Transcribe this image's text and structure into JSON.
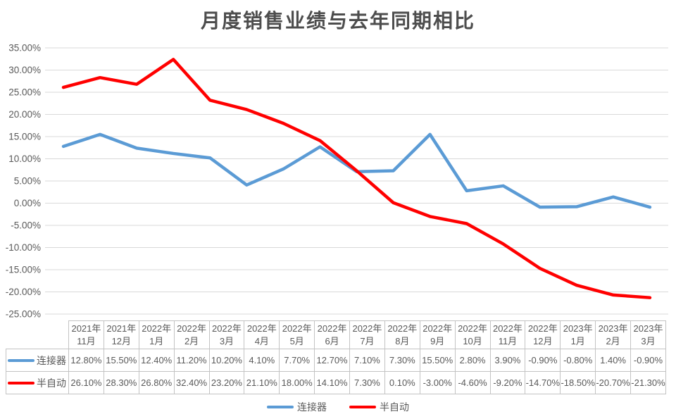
{
  "title": "月度销售业绩与去年同期相比",
  "chart_data": {
    "type": "line",
    "title": "月度销售业绩与去年同期相比",
    "categories": [
      "2021年11月",
      "2021年12月",
      "2022年1月",
      "2022年2月",
      "2022年3月",
      "2022年4月",
      "2022年5月",
      "2022年6月",
      "2022年7月",
      "2022年8月",
      "2022年9月",
      "2022年10月",
      "2022年11月",
      "2022年12月",
      "2023年1月",
      "2023年2月",
      "2023年3月"
    ],
    "series": [
      {
        "name": "连接器",
        "color": "#5B9BD5",
        "values": [
          12.8,
          15.5,
          12.4,
          11.2,
          10.2,
          4.1,
          7.7,
          12.7,
          7.1,
          7.3,
          15.5,
          2.8,
          3.9,
          -0.9,
          -0.8,
          1.4,
          -0.9
        ]
      },
      {
        "name": "半自动",
        "color": "#FF0000",
        "values": [
          26.1,
          28.3,
          26.8,
          32.4,
          23.2,
          21.1,
          18.0,
          14.1,
          7.3,
          0.1,
          -3.0,
          -4.6,
          -9.2,
          -14.7,
          -18.5,
          -20.7,
          -21.3
        ]
      }
    ],
    "ylim": [
      -25,
      35
    ],
    "ytick_step": 5,
    "ytick_labels": [
      "35.00%",
      "30.00%",
      "25.00%",
      "20.00%",
      "15.00%",
      "10.00%",
      "5.00%",
      "0.00%",
      "-5.00%",
      "-10.00%",
      "-15.00%",
      "-20.00%",
      "-25.00%"
    ],
    "value_format": "0.00%",
    "grid": true,
    "show_data_table": true,
    "legend_position": "bottom"
  },
  "styles": {
    "background": "#FFFFFF",
    "title_color": "#4D4D4D",
    "text_color": "#595959",
    "gridline_color": "#D9D9D9",
    "table_border_color": "#C3C3C3"
  }
}
